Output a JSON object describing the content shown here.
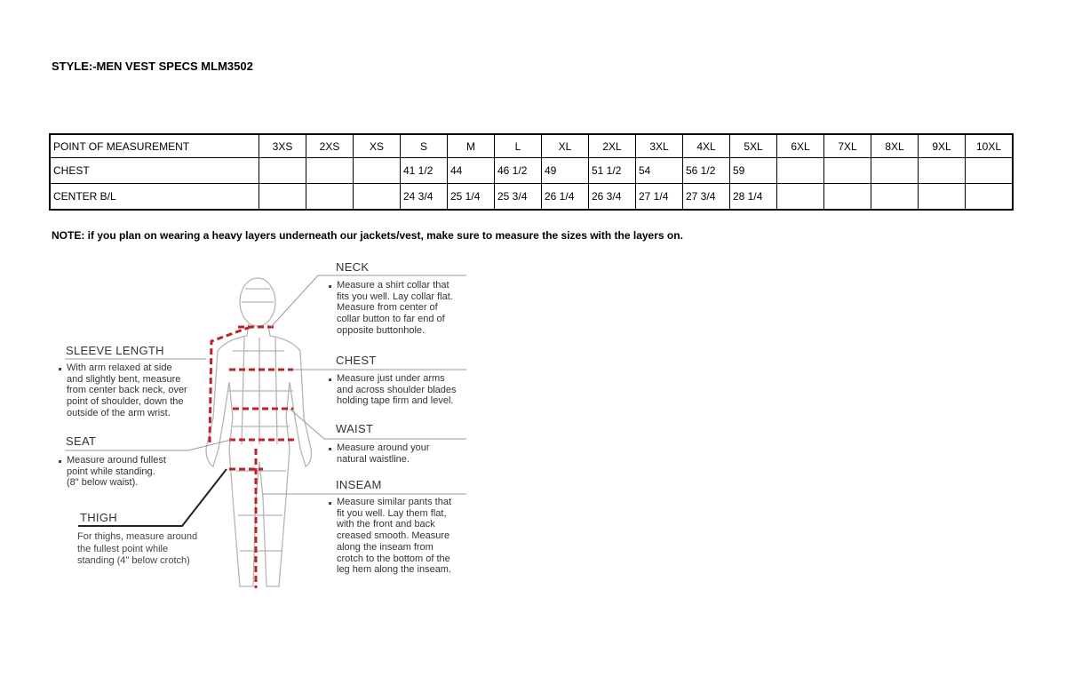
{
  "title": "STYLE:-MEN VEST SPECS MLM3502",
  "table": {
    "header": [
      "POINT OF MEASUREMENT",
      "3XS",
      "2XS",
      "XS",
      "S",
      "M",
      "L",
      "XL",
      "2XL",
      "3XL",
      "4XL",
      "5XL",
      "6XL",
      "7XL",
      "8XL",
      "9XL",
      "10XL"
    ],
    "rows": [
      [
        "CHEST",
        "",
        "",
        "",
        "41 1/2",
        "44",
        "46 1/2",
        "49",
        "51 1/2",
        "54",
        "56 1/2",
        "59",
        "",
        "",
        "",
        "",
        ""
      ],
      [
        "CENTER B/L",
        "",
        "",
        "",
        "24 3/4",
        "25 1/4",
        "25 3/4",
        "26 1/4",
        "26 3/4",
        "27 1/4",
        "27 3/4",
        "28 1/4",
        "",
        "",
        "",
        "",
        ""
      ]
    ]
  },
  "note": "NOTE: if you plan on wearing a heavy layers underneath our jackets/vest, make sure to measure the sizes with the layers on.",
  "guide": {
    "neck": {
      "label": "NECK",
      "text": "Measure a shirt collar that\nfits you well. Lay collar flat.\nMeasure from center of\ncollar button to far end of\nopposite buttonhole."
    },
    "sleeve": {
      "label": "SLEEVE LENGTH",
      "text": "With arm relaxed at side\nand slightly bent, measure\nfrom center back neck, over\npoint of shoulder, down the\noutside of the arm wrist."
    },
    "chest": {
      "label": "CHEST",
      "text": "Measure just under arms\nand across shoulder blades\nholding tape firm and level."
    },
    "waist": {
      "label": "WAIST",
      "text": "Measure around your\nnatural waistline."
    },
    "seat": {
      "label": "SEAT",
      "text": "Measure around fullest\npoint while standing.\n(8\" below waist)."
    },
    "inseam": {
      "label": "INSEAM",
      "text": "Measure similar pants that\nfit you well. Lay them flat,\nwith the front and back\ncreased smooth. Measure\nalong the inseam from\ncrotch to the bottom of the\nleg hem along the inseam."
    },
    "thigh": {
      "label": "THIGH",
      "text": "For thighs, measure around\nthe fullest point while\nstanding (4\" below crotch)"
    }
  },
  "colors": {
    "measure_line": "#c0202a",
    "figure": "#b5b5b5",
    "leader": "#999999"
  }
}
